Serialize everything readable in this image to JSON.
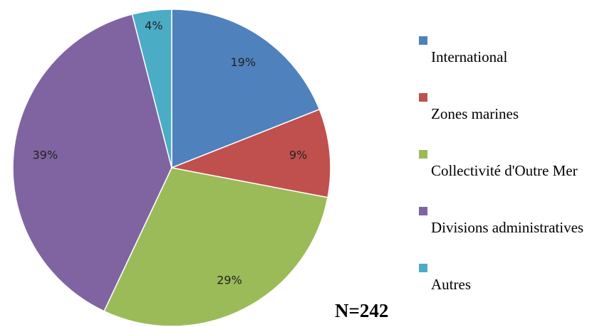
{
  "chart_data": {
    "type": "pie",
    "categories": [
      "International",
      "Zones marines",
      "Collectivité d'Outre Mer",
      "Divisions administratives",
      "Autres"
    ],
    "values": [
      19,
      9,
      29,
      39,
      4
    ],
    "value_labels": [
      "19%",
      "9%",
      "29%",
      "39%",
      "4%"
    ],
    "colors": [
      "#4f81bd",
      "#c0504d",
      "#9bbb59",
      "#8064a2",
      "#4bacc6"
    ],
    "annotation": "N=242"
  }
}
